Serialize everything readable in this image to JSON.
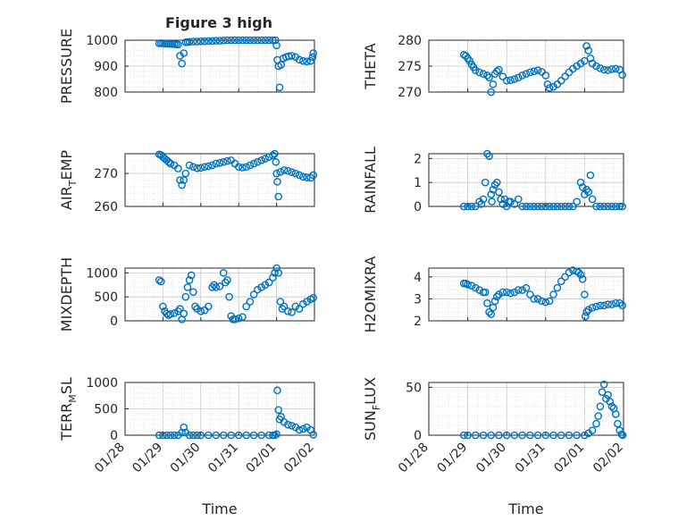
{
  "figure_title": "Figure 3 high",
  "colors": {
    "series": "#0072bd",
    "axes": "#262626",
    "grid": "#c8c8c8"
  },
  "chart_data": [
    {
      "type": "scatter",
      "ylabel": "PRESSURE",
      "ylim": [
        800,
        1000
      ],
      "yticks": [
        800,
        900,
        1000
      ],
      "xlim": [
        0,
        5
      ],
      "grid": true,
      "series": [
        {
          "x": [
            0.9,
            0.95,
            1.0,
            1.05,
            1.1,
            1.15,
            1.2,
            1.25,
            1.3,
            1.35,
            1.4,
            1.45,
            1.5,
            1.55,
            1.6,
            1.65,
            1.7,
            1.8,
            1.9,
            2.0,
            2.1,
            2.2,
            2.3,
            2.4,
            2.5,
            2.6,
            2.7,
            2.8,
            2.9,
            3.0,
            3.1,
            3.2,
            3.3,
            3.4,
            3.5,
            3.6,
            3.7,
            3.8,
            3.9,
            3.97,
            4.0,
            4.02,
            4.05,
            4.08,
            4.12,
            4.18,
            4.25,
            4.32,
            4.4,
            4.5,
            4.6,
            4.7,
            4.8,
            4.9,
            4.95,
            4.97
          ],
          "y": [
            988,
            988,
            988,
            987,
            987,
            986,
            986,
            985,
            985,
            984,
            983,
            940,
            910,
            950,
            992,
            993,
            994,
            995,
            995,
            996,
            996,
            997,
            997,
            998,
            998,
            999,
            1000,
            1001,
            1002,
            1003,
            1004,
            1005,
            1005,
            1006,
            1006,
            1006,
            1006,
            1005,
            1004,
            1000,
            980,
            924,
            900,
            818,
            905,
            930,
            935,
            938,
            940,
            935,
            925,
            920,
            918,
            920,
            935,
            950
          ]
        }
      ]
    },
    {
      "type": "scatter",
      "ylabel": "THETA",
      "ylim": [
        270,
        280
      ],
      "yticks": [
        270,
        275,
        280
      ],
      "xlim": [
        0,
        5
      ],
      "grid": true,
      "series": [
        {
          "x": [
            0.9,
            0.95,
            1.0,
            1.05,
            1.1,
            1.15,
            1.2,
            1.3,
            1.4,
            1.5,
            1.55,
            1.6,
            1.65,
            1.7,
            1.75,
            1.8,
            1.9,
            2.0,
            2.1,
            2.2,
            2.3,
            2.4,
            2.5,
            2.6,
            2.7,
            2.8,
            2.9,
            3.0,
            3.05,
            3.1,
            3.2,
            3.3,
            3.4,
            3.5,
            3.6,
            3.7,
            3.8,
            3.9,
            4.0,
            4.05,
            4.1,
            4.15,
            4.2,
            4.3,
            4.4,
            4.5,
            4.6,
            4.7,
            4.8,
            4.9,
            4.97
          ],
          "y": [
            277.2,
            277.0,
            276.5,
            276.0,
            275.3,
            274.8,
            274.2,
            273.8,
            273.5,
            273.2,
            272.8,
            270.0,
            271.5,
            273.5,
            274.0,
            274.3,
            273.0,
            272.2,
            272.3,
            272.5,
            272.8,
            273.2,
            273.5,
            273.8,
            274.0,
            274.2,
            273.9,
            273.2,
            271.5,
            270.8,
            271.0,
            271.5,
            272.2,
            273.0,
            273.8,
            274.5,
            275.0,
            275.5,
            276.0,
            278.9,
            278.0,
            276.5,
            275.5,
            275.0,
            274.6,
            274.3,
            274.2,
            274.4,
            274.5,
            274.3,
            273.3
          ]
        }
      ]
    },
    {
      "type": "scatter",
      "ylabel": "AIR_TEMP",
      "ylabel_main": "AIR",
      "ylabel_sub": "T",
      "ylabel_tail": "EMP",
      "ylim": [
        260,
        276
      ],
      "yticks": [
        260,
        270
      ],
      "xlim": [
        0,
        5
      ],
      "grid": true,
      "series": [
        {
          "x": [
            0.9,
            0.95,
            1.0,
            1.05,
            1.1,
            1.15,
            1.2,
            1.3,
            1.4,
            1.45,
            1.5,
            1.55,
            1.6,
            1.7,
            1.8,
            1.9,
            2.0,
            2.1,
            2.2,
            2.3,
            2.4,
            2.5,
            2.6,
            2.7,
            2.8,
            2.9,
            3.0,
            3.1,
            3.2,
            3.3,
            3.4,
            3.5,
            3.6,
            3.7,
            3.8,
            3.9,
            3.95,
            3.98,
            4.0,
            4.02,
            4.05,
            4.1,
            4.2,
            4.3,
            4.4,
            4.5,
            4.6,
            4.7,
            4.8,
            4.9,
            4.97
          ],
          "y": [
            275.8,
            275.6,
            275.0,
            274.5,
            274.0,
            273.5,
            273.0,
            272.5,
            271.5,
            268.0,
            266.5,
            268.0,
            270.0,
            272.5,
            272.0,
            271.6,
            271.7,
            272.0,
            272.2,
            272.5,
            273.0,
            273.2,
            273.5,
            273.8,
            274.0,
            273.0,
            272.0,
            271.8,
            272.0,
            272.5,
            273.0,
            273.5,
            274.0,
            274.5,
            275.0,
            275.5,
            276.0,
            273.5,
            270.0,
            267.5,
            263.0,
            270.5,
            271.0,
            270.8,
            270.4,
            270.0,
            269.5,
            269.0,
            268.8,
            268.7,
            269.5
          ]
        }
      ]
    },
    {
      "type": "scatter",
      "ylabel": "RAINFALL",
      "ylim": [
        0,
        2.2
      ],
      "yticks": [
        0,
        1,
        2
      ],
      "xlim": [
        0,
        5
      ],
      "grid": true,
      "series": [
        {
          "x": [
            0.9,
            1.0,
            1.1,
            1.2,
            1.3,
            1.35,
            1.4,
            1.45,
            1.5,
            1.55,
            1.6,
            1.62,
            1.65,
            1.7,
            1.75,
            1.8,
            1.85,
            1.9,
            1.95,
            2.0,
            2.05,
            2.1,
            2.2,
            2.3,
            2.4,
            2.5,
            2.6,
            2.7,
            2.8,
            2.9,
            3.0,
            3.1,
            3.2,
            3.3,
            3.4,
            3.5,
            3.6,
            3.7,
            3.8,
            3.9,
            3.95,
            4.0,
            4.05,
            4.1,
            4.15,
            4.2,
            4.3,
            4.4,
            4.5,
            4.6,
            4.7,
            4.8,
            4.9,
            4.97
          ],
          "y": [
            0,
            0,
            0,
            0,
            0.2,
            0.1,
            0.3,
            1.0,
            2.2,
            2.1,
            0.5,
            0.2,
            0.7,
            0.9,
            1.0,
            0.6,
            0.3,
            0.1,
            0.3,
            0,
            0.2,
            0.2,
            0.1,
            0.3,
            0,
            0,
            0,
            0,
            0,
            0,
            0,
            0,
            0,
            0,
            0,
            0,
            0,
            0,
            0.2,
            1.0,
            0.8,
            0.5,
            0.7,
            0.6,
            1.3,
            0.3,
            0,
            0,
            0,
            0,
            0,
            0,
            0,
            0
          ]
        }
      ]
    },
    {
      "type": "scatter",
      "ylabel": "MIXDEPTH",
      "ylim": [
        0,
        1100
      ],
      "yticks": [
        0,
        500,
        1000
      ],
      "xlim": [
        0,
        5
      ],
      "grid": true,
      "series": [
        {
          "x": [
            0.9,
            0.95,
            1.0,
            1.05,
            1.1,
            1.15,
            1.2,
            1.3,
            1.4,
            1.45,
            1.5,
            1.55,
            1.6,
            1.65,
            1.7,
            1.75,
            1.8,
            1.85,
            1.9,
            2.0,
            2.1,
            2.2,
            2.3,
            2.35,
            2.4,
            2.5,
            2.6,
            2.65,
            2.7,
            2.75,
            2.8,
            2.85,
            2.9,
            3.0,
            3.1,
            3.2,
            3.3,
            3.4,
            3.5,
            3.6,
            3.7,
            3.8,
            3.9,
            3.95,
            4.0,
            4.05,
            4.1,
            4.15,
            4.2,
            4.3,
            4.4,
            4.5,
            4.6,
            4.7,
            4.8,
            4.9,
            4.97
          ],
          "y": [
            850,
            820,
            300,
            200,
            150,
            120,
            140,
            160,
            200,
            250,
            30,
            150,
            500,
            700,
            850,
            950,
            600,
            300,
            250,
            200,
            220,
            300,
            700,
            750,
            700,
            720,
            1000,
            800,
            850,
            500,
            100,
            30,
            30,
            50,
            80,
            300,
            400,
            550,
            650,
            700,
            750,
            800,
            900,
            1000,
            1100,
            1000,
            400,
            250,
            300,
            200,
            180,
            300,
            250,
            350,
            400,
            450,
            480
          ]
        }
      ]
    },
    {
      "type": "scatter",
      "ylabel": "H2OMIXRA",
      "ylim": [
        2,
        4.4
      ],
      "yticks": [
        2,
        3,
        4
      ],
      "xlim": [
        0,
        5
      ],
      "grid": true,
      "series": [
        {
          "x": [
            0.9,
            0.95,
            1.0,
            1.1,
            1.2,
            1.3,
            1.4,
            1.45,
            1.5,
            1.55,
            1.6,
            1.65,
            1.7,
            1.75,
            1.8,
            1.9,
            2.0,
            2.1,
            2.2,
            2.3,
            2.4,
            2.5,
            2.6,
            2.7,
            2.8,
            2.9,
            3.0,
            3.1,
            3.2,
            3.3,
            3.4,
            3.5,
            3.6,
            3.7,
            3.8,
            3.85,
            3.9,
            3.95,
            4.0,
            4.02,
            4.05,
            4.1,
            4.2,
            4.3,
            4.4,
            4.5,
            4.6,
            4.7,
            4.8,
            4.9,
            4.97
          ],
          "y": [
            3.7,
            3.7,
            3.65,
            3.6,
            3.5,
            3.4,
            3.3,
            3.3,
            2.8,
            2.4,
            2.3,
            2.6,
            2.9,
            3.1,
            3.2,
            3.3,
            3.3,
            3.25,
            3.3,
            3.4,
            3.4,
            3.5,
            3.2,
            3.0,
            3.0,
            2.9,
            2.85,
            2.9,
            3.2,
            3.5,
            3.8,
            4.0,
            4.2,
            4.3,
            4.25,
            4.2,
            4.1,
            3.9,
            3.2,
            2.2,
            2.4,
            2.5,
            2.6,
            2.65,
            2.7,
            2.7,
            2.75,
            2.75,
            2.8,
            2.8,
            2.7
          ]
        }
      ]
    },
    {
      "type": "scatter",
      "ylabel": "TERR_MSL",
      "ylabel_main": "TERR",
      "ylabel_sub": "M",
      "ylabel_tail": "SL",
      "ylim": [
        0,
        1000
      ],
      "yticks": [
        0,
        500,
        1000
      ],
      "xlim": [
        0,
        5
      ],
      "grid": true,
      "xlabel": "Time",
      "xticks": [
        "01/28",
        "01/29",
        "01/30",
        "01/31",
        "02/01",
        "02/02"
      ],
      "series": [
        {
          "x": [
            0.9,
            1.0,
            1.1,
            1.2,
            1.3,
            1.4,
            1.5,
            1.55,
            1.6,
            1.7,
            1.8,
            1.9,
            2.0,
            2.2,
            2.4,
            2.6,
            2.8,
            3.0,
            3.2,
            3.4,
            3.6,
            3.8,
            3.9,
            3.95,
            4.0,
            4.02,
            4.05,
            4.08,
            4.12,
            4.2,
            4.3,
            4.4,
            4.5,
            4.6,
            4.7,
            4.8,
            4.9,
            4.97
          ],
          "y": [
            0,
            0,
            0,
            0,
            0,
            0,
            50,
            150,
            50,
            0,
            0,
            0,
            0,
            0,
            0,
            0,
            0,
            0,
            0,
            0,
            0,
            0,
            0,
            0,
            20,
            850,
            480,
            300,
            350,
            250,
            200,
            180,
            150,
            100,
            120,
            150,
            100,
            10
          ]
        }
      ]
    },
    {
      "type": "scatter",
      "ylabel": "SUN_FLUX",
      "ylabel_main": "SUN",
      "ylabel_sub": "F",
      "ylabel_tail": "LUX",
      "ylim": [
        0,
        55
      ],
      "yticks": [
        0,
        50
      ],
      "xlim": [
        0,
        5
      ],
      "grid": true,
      "xlabel": "Time",
      "xticks": [
        "01/28",
        "01/29",
        "01/30",
        "01/31",
        "02/01",
        "02/02"
      ],
      "series": [
        {
          "x": [
            0.9,
            1.0,
            1.2,
            1.4,
            1.6,
            1.8,
            2.0,
            2.2,
            2.4,
            2.6,
            2.8,
            3.0,
            3.2,
            3.4,
            3.6,
            3.8,
            4.0,
            4.1,
            4.2,
            4.3,
            4.35,
            4.4,
            4.45,
            4.5,
            4.55,
            4.6,
            4.65,
            4.7,
            4.75,
            4.8,
            4.85,
            4.9,
            4.95,
            4.98
          ],
          "y": [
            0,
            0,
            0,
            0,
            0,
            0,
            0,
            0,
            0,
            0,
            0,
            0,
            0,
            0,
            0,
            0,
            0,
            2,
            5,
            12,
            20,
            30,
            45,
            53,
            38,
            42,
            35,
            30,
            28,
            22,
            12,
            5,
            1,
            0
          ]
        }
      ]
    }
  ]
}
